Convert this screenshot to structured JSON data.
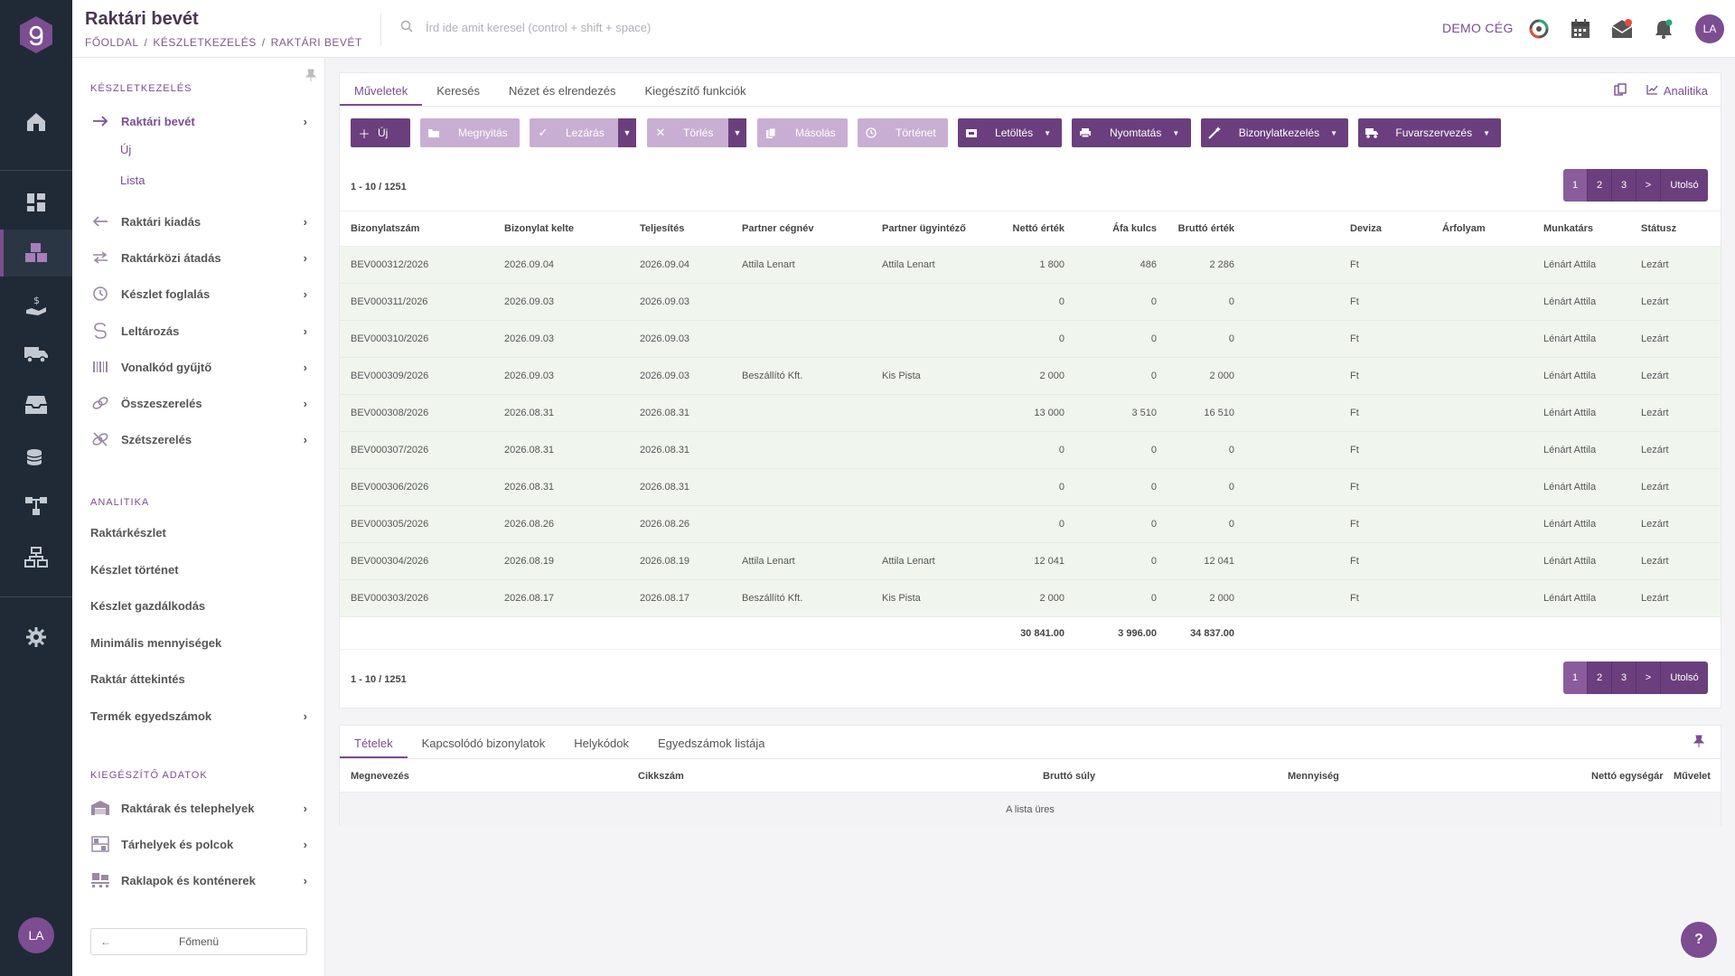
{
  "app": {
    "title": "Raktári bevét",
    "breadcrumb": [
      "FŐOLDAL",
      "/",
      "KÉSZLETKEZELÉS",
      "/",
      "RAKTÁRI BEVÉT"
    ],
    "search_placeholder": "Írd ide amit keresel (control + shift + space)",
    "company": "DEMO CÉG",
    "user_initials": "LA",
    "accent_color": "#7c4d91"
  },
  "sidebar": {
    "section1": "KÉSZLETKEZELÉS",
    "items": [
      {
        "label": "Raktári bevét",
        "icon": "arrow-right-icon"
      },
      {
        "label": "Raktári kiadás",
        "icon": "arrow-left-icon"
      },
      {
        "label": "Raktárközi átadás",
        "icon": "transfer-icon"
      },
      {
        "label": "Készlet foglalás",
        "icon": "reserve-icon"
      },
      {
        "label": "Leltározás",
        "icon": "inventory-icon"
      },
      {
        "label": "Vonalkód gyűjtő",
        "icon": "barcode-icon"
      },
      {
        "label": "Összeszerelés",
        "icon": "link-icon"
      },
      {
        "label": "Szétszerelés",
        "icon": "unlink-icon"
      }
    ],
    "subitems": [
      "Új",
      "Lista"
    ],
    "section2": "ANALITIKA",
    "analytics": [
      "Raktárkészlet",
      "Készlet történet",
      "Készlet gazdálkodás",
      "Minimális mennyiségek",
      "Raktár áttekintés",
      "Termék egyedszámok"
    ],
    "section3": "KIEGÉSZÍTŐ ADATOK",
    "extra": [
      {
        "label": "Raktárak és telephelyek",
        "icon": "warehouse-icon"
      },
      {
        "label": "Tárhelyek és polcok",
        "icon": "shelf-icon"
      },
      {
        "label": "Raklapok és konténerek",
        "icon": "pallet-icon"
      }
    ],
    "back_label": "Főmenü"
  },
  "tabs": [
    "Műveletek",
    "Keresés",
    "Nézet és elrendezés",
    "Kiegészítő funkciók"
  ],
  "analytics_label": "Analitika",
  "toolbar": {
    "new": "Új",
    "open": "Megnyitás",
    "close": "Lezárás",
    "delete": "Törlés",
    "copy": "Másolás",
    "history": "Történet",
    "download": "Letöltés",
    "print": "Nyomtatás",
    "docmgmt": "Bizonylatkezelés",
    "freight": "Fuvarszervezés"
  },
  "pagination": {
    "count": "1 - 10 / 1251",
    "pages": [
      "1",
      "2",
      "3",
      ">"
    ],
    "last": "Utolsó"
  },
  "table": {
    "columns": [
      "Bizonylatszám",
      "Bizonylat kelte",
      "Teljesítés",
      "Partner cégnév",
      "Partner ügyintéző",
      "Nettó érték",
      "Áfa kulcs",
      "Bruttó érték",
      "Deviza",
      "Árfolyam",
      "Munkatárs",
      "Státusz"
    ],
    "rows": [
      [
        "BEV000312/2026",
        "2026.09.04",
        "2026.09.04",
        "Attila Lenart",
        "Attila Lenart",
        "1 800",
        "486",
        "2 286",
        "Ft",
        "",
        "Lénárt Attila",
        "Lezárt"
      ],
      [
        "BEV000311/2026",
        "2026.09.03",
        "2026.09.03",
        "",
        "",
        "0",
        "0",
        "0",
        "Ft",
        "",
        "Lénárt Attila",
        "Lezárt"
      ],
      [
        "BEV000310/2026",
        "2026.09.03",
        "2026.09.03",
        "",
        "",
        "0",
        "0",
        "0",
        "Ft",
        "",
        "Lénárt Attila",
        "Lezárt"
      ],
      [
        "BEV000309/2026",
        "2026.09.03",
        "2026.09.03",
        "Beszállító Kft.",
        "Kis Pista",
        "2 000",
        "0",
        "2 000",
        "Ft",
        "",
        "Lénárt Attila",
        "Lezárt"
      ],
      [
        "BEV000308/2026",
        "2026.08.31",
        "2026.08.31",
        "",
        "",
        "13 000",
        "3 510",
        "16 510",
        "Ft",
        "",
        "Lénárt Attila",
        "Lezárt"
      ],
      [
        "BEV000307/2026",
        "2026.08.31",
        "2026.08.31",
        "",
        "",
        "0",
        "0",
        "0",
        "Ft",
        "",
        "Lénárt Attila",
        "Lezárt"
      ],
      [
        "BEV000306/2026",
        "2026.08.31",
        "2026.08.31",
        "",
        "",
        "0",
        "0",
        "0",
        "Ft",
        "",
        "Lénárt Attila",
        "Lezárt"
      ],
      [
        "BEV000305/2026",
        "2026.08.26",
        "2026.08.26",
        "",
        "",
        "0",
        "0",
        "0",
        "Ft",
        "",
        "Lénárt Attila",
        "Lezárt"
      ],
      [
        "BEV000304/2026",
        "2026.08.19",
        "2026.08.19",
        "Attila Lenart",
        "Attila Lenart",
        "12 041",
        "0",
        "12 041",
        "Ft",
        "",
        "Lénárt Attila",
        "Lezárt"
      ],
      [
        "BEV000303/2026",
        "2026.08.17",
        "2026.08.17",
        "Beszállító Kft.",
        "Kis Pista",
        "2 000",
        "0",
        "2 000",
        "Ft",
        "",
        "Lénárt Attila",
        "Lezárt"
      ]
    ],
    "totals": [
      "30 841.00",
      "3 996.00",
      "34 837.00"
    ]
  },
  "bottom": {
    "tabs": [
      "Tételek",
      "Kapcsolódó bizonylatok",
      "Helykódok",
      "Egyedszámok listája"
    ],
    "columns": [
      "Megnevezés",
      "Cikkszám",
      "Bruttó súly",
      "Mennyiség",
      "Nettó egységár",
      "Művelet"
    ],
    "empty": "A lista üres"
  },
  "help_label": "?"
}
